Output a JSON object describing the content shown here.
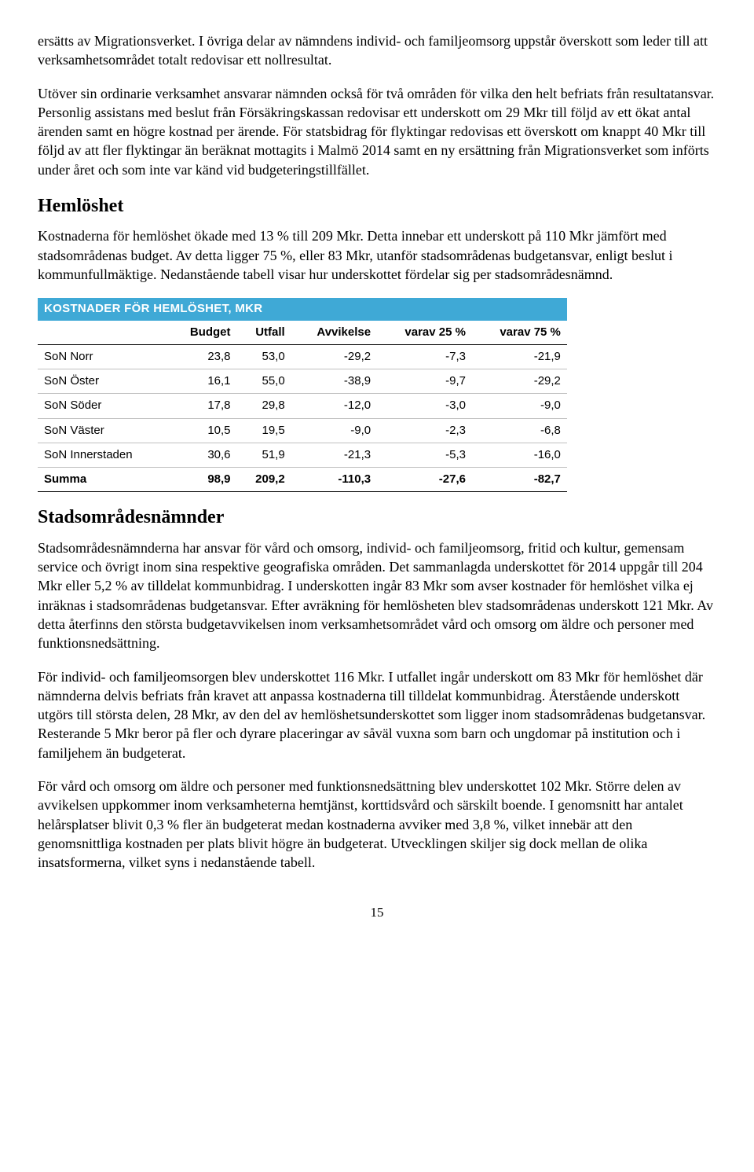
{
  "para1": "ersätts av Migrationsverket. I övriga delar av nämndens individ- och familjeomsorg uppstår överskott som leder till att verksamhetsområdet totalt redovisar ett nollresultat.",
  "para2": "Utöver sin ordinarie verksamhet ansvarar nämnden också för två områden för vilka den helt befriats från resultatansvar. Personlig assistans med beslut från Försäkringskassan redovisar ett underskott om 29 Mkr till följd av ett ökat antal ärenden samt en högre kostnad per ärende. För statsbidrag för flyktingar redovisas ett överskott om knappt 40 Mkr till följd av att fler flyktingar än beräknat mottagits i Malmö 2014 samt en ny ersättning från Migrationsverket som införts under året och som inte var känd vid budgeteringstillfället.",
  "heading_hemloshet": "Hemlöshet",
  "para3": "Kostnaderna för hemlöshet ökade med 13 % till 209 Mkr. Detta innebar ett underskott på 110 Mkr jämfört med stadsområdenas budget. Av detta ligger 75 %, eller 83 Mkr, utanför stadsområdenas budgetansvar, enligt beslut i kommunfullmäktige. Nedanstående tabell visar hur underskottet fördelar sig per stadsområdesnämnd.",
  "table": {
    "title": "KOSTNADER FÖR HEMLÖSHET, MKR",
    "title_bg": "#3fa9d6",
    "title_color": "#ffffff",
    "columns": [
      "",
      "Budget",
      "Utfall",
      "Avvikelse",
      "varav 25 %",
      "varav 75 %"
    ],
    "rows": [
      [
        "SoN Norr",
        "23,8",
        "53,0",
        "-29,2",
        "-7,3",
        "-21,9"
      ],
      [
        "SoN Öster",
        "16,1",
        "55,0",
        "-38,9",
        "-9,7",
        "-29,2"
      ],
      [
        "SoN Söder",
        "17,8",
        "29,8",
        "-12,0",
        "-3,0",
        "-9,0"
      ],
      [
        "SoN Väster",
        "10,5",
        "19,5",
        "-9,0",
        "-2,3",
        "-6,8"
      ],
      [
        "SoN Innerstaden",
        "30,6",
        "51,9",
        "-21,3",
        "-5,3",
        "-16,0"
      ]
    ],
    "sum_row": [
      "Summa",
      "98,9",
      "209,2",
      "-110,3",
      "-27,6",
      "-82,7"
    ]
  },
  "heading_stadsomrade": "Stadsområdesnämnder",
  "para4": "Stadsområdesnämnderna har ansvar för vård och omsorg, individ- och familjeomsorg, fritid och kultur, gemensam service och övrigt inom sina respektive geografiska områden. Det sammanlagda underskottet för 2014 uppgår till 204 Mkr eller 5,2 % av tilldelat kommunbidrag. I underskotten ingår 83 Mkr som avser kostnader för hemlöshet vilka ej inräknas i stadsområdenas budgetansvar. Efter avräkning för hemlösheten blev stadsområdenas underskott 121 Mkr. Av detta återfinns den största budgetavvikelsen inom verksamhetsområdet vård och omsorg om äldre och personer med funktionsnedsättning.",
  "para5": "För individ- och familjeomsorgen blev underskottet 116 Mkr. I utfallet ingår underskott om 83 Mkr för hemlöshet där nämnderna delvis befriats från kravet att anpassa kostnaderna till tilldelat kommunbidrag. Återstående underskott utgörs till största delen, 28 Mkr, av den del av hemlöshetsunderskottet som ligger inom stadsområdenas budgetansvar. Resterande 5 Mkr beror på fler och dyrare placeringar av såväl vuxna som barn och ungdomar på institution och i familjehem än budgeterat.",
  "para6": "För vård och omsorg om äldre och personer med funktionsnedsättning blev underskottet 102 Mkr. Större delen av avvikelsen uppkommer inom verksamheterna hemtjänst, korttidsvård och särskilt boende. I genomsnitt har antalet helårsplatser blivit 0,3 % fler än budgeterat medan kostnaderna avviker med 3,8 %, vilket innebär att den genomsnittliga kostnaden per plats blivit högre än budgeterat. Utvecklingen skiljer sig dock mellan de olika insatsformerna, vilket syns i nedanstående tabell.",
  "page_num": "15"
}
